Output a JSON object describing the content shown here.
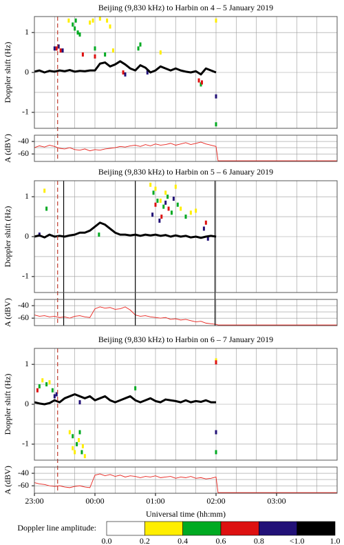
{
  "chart_data": [
    {
      "type": "doppler",
      "title": "Beijing (9,830 kHz) to Harbin on 4 – 5 January 2019",
      "ylabel": "Doppler shift (Hz)",
      "xlim": [
        0,
        300
      ],
      "xgrid": [
        20,
        40,
        60,
        80,
        100,
        120,
        140,
        160,
        180,
        200,
        220,
        240,
        260,
        280
      ],
      "ylim": [
        -1.4,
        1.4
      ],
      "yticks": [
        -1,
        0,
        1
      ],
      "ygrid": [
        -1,
        -0.5,
        0,
        0.5,
        1
      ],
      "markers": [
        {
          "x": 23,
          "style": "dashed",
          "color": "#c0392b"
        }
      ],
      "trace": {
        "color": "#000000",
        "x": [
          0,
          5,
          10,
          15,
          20,
          25,
          30,
          35,
          40,
          45,
          50,
          55,
          60,
          65,
          70,
          75,
          80,
          85,
          90,
          95,
          100,
          105,
          110,
          115,
          120,
          125,
          130,
          135,
          140,
          145,
          150,
          155,
          160,
          165,
          170,
          175,
          180
        ],
        "values": [
          0.02,
          0.05,
          0.0,
          0.04,
          0.02,
          0.05,
          0.03,
          0.06,
          0.02,
          0.04,
          0.03,
          0.05,
          0.05,
          0.22,
          0.25,
          0.15,
          0.2,
          0.28,
          0.2,
          0.1,
          0.05,
          0.18,
          0.12,
          0.0,
          0.05,
          0.15,
          0.1,
          0.05,
          0.1,
          0.05,
          0.02,
          0.0,
          0.03,
          -0.05,
          0.1,
          0.05,
          0.0
        ]
      },
      "dots": [
        {
          "color": "#00aa22",
          "x": [
            38,
            40,
            41,
            43,
            45,
            60,
            70,
            103,
            105,
            165,
            180
          ],
          "values": [
            1.2,
            1.1,
            1.3,
            1.0,
            0.95,
            0.6,
            0.45,
            0.6,
            0.7,
            -0.3,
            -1.3
          ]
        },
        {
          "color": "#ffee00",
          "x": [
            34,
            55,
            58,
            65,
            72,
            75,
            78,
            125,
            180
          ],
          "values": [
            1.3,
            1.25,
            1.3,
            1.35,
            1.3,
            1.15,
            0.55,
            0.5,
            1.3
          ]
        },
        {
          "color": "#dd1111",
          "x": [
            22,
            26,
            48,
            60,
            88,
            163,
            166
          ],
          "values": [
            0.6,
            0.55,
            0.45,
            0.4,
            0.0,
            -0.2,
            -0.25
          ]
        },
        {
          "color": "#221177",
          "x": [
            20,
            24,
            28,
            90,
            112,
            180
          ],
          "values": [
            0.6,
            0.65,
            0.55,
            -0.05,
            0.0,
            -0.6
          ]
        }
      ],
      "amplitude": {
        "ylabel": "A (dBV)",
        "ylim": [
          -72,
          -30
        ],
        "yticks": [
          -40,
          -60
        ],
        "ygrid": [
          -40,
          -50,
          -60
        ],
        "color": "#e8201a",
        "x": [
          0,
          5,
          10,
          15,
          20,
          25,
          30,
          35,
          40,
          45,
          50,
          55,
          60,
          65,
          70,
          75,
          80,
          85,
          90,
          95,
          100,
          105,
          110,
          115,
          120,
          125,
          130,
          135,
          140,
          145,
          150,
          155,
          160,
          165,
          170,
          175,
          180,
          182,
          300
        ],
        "values": [
          -50,
          -47,
          -49,
          -46,
          -48,
          -51,
          -52,
          -50,
          -53,
          -54,
          -52,
          -55,
          -53,
          -54,
          -52,
          -51,
          -50,
          -48,
          -49,
          -47,
          -46,
          -48,
          -45,
          -47,
          -44,
          -46,
          -45,
          -43,
          -46,
          -44,
          -42,
          -45,
          -43,
          -41,
          -44,
          -46,
          -48,
          -71,
          -71
        ]
      }
    },
    {
      "type": "doppler",
      "title": "Beijing (9,830 kHz) to Harbin on 5 – 6 January 2019",
      "ylabel": "Doppler shift (Hz)",
      "xlim": [
        0,
        300
      ],
      "xgrid": [
        20,
        40,
        60,
        80,
        100,
        120,
        140,
        160,
        180,
        200,
        220,
        240,
        260,
        280
      ],
      "ylim": [
        -1.4,
        1.4
      ],
      "yticks": [
        -1,
        0,
        1
      ],
      "ygrid": [
        -1,
        -0.5,
        0,
        0.5,
        1
      ],
      "markers": [
        {
          "x": 23,
          "style": "dashed",
          "color": "#c0392b"
        },
        {
          "x": 29,
          "style": "solid",
          "color": "#000000"
        },
        {
          "x": 100,
          "style": "solid",
          "color": "#000000"
        },
        {
          "x": 179,
          "style": "solid",
          "color": "#000000"
        }
      ],
      "trace": {
        "color": "#000000",
        "x": [
          0,
          5,
          10,
          15,
          20,
          25,
          30,
          35,
          40,
          45,
          50,
          55,
          60,
          65,
          70,
          75,
          80,
          85,
          90,
          95,
          100,
          105,
          110,
          115,
          120,
          125,
          130,
          135,
          140,
          145,
          150,
          155,
          160,
          165,
          170,
          175,
          180
        ],
        "values": [
          0.0,
          0.03,
          -0.02,
          0.05,
          0.0,
          0.02,
          0.0,
          0.03,
          0.05,
          0.1,
          0.1,
          0.15,
          0.25,
          0.35,
          0.3,
          0.2,
          0.1,
          0.05,
          0.05,
          0.03,
          0.05,
          0.02,
          0.05,
          0.03,
          0.05,
          0.02,
          0.04,
          0.0,
          0.03,
          0.0,
          0.02,
          -0.02,
          0.0,
          -0.03,
          0.0,
          0.02,
          0.0
        ]
      },
      "dots": [
        {
          "color": "#00aa22",
          "x": [
            118,
            122,
            128,
            132,
            136,
            142,
            150,
            12,
            64
          ],
          "values": [
            1.1,
            0.9,
            0.75,
            1.0,
            0.6,
            0.8,
            0.5,
            0.7,
            0.05
          ]
        },
        {
          "color": "#ffee00",
          "x": [
            115,
            120,
            125,
            130,
            140,
            145,
            155,
            160,
            10
          ],
          "values": [
            1.3,
            1.2,
            0.9,
            1.1,
            1.25,
            0.7,
            0.6,
            0.65,
            1.15
          ]
        },
        {
          "color": "#dd1111",
          "x": [
            120,
            126,
            133,
            170
          ],
          "values": [
            0.8,
            0.5,
            0.7,
            0.35
          ]
        },
        {
          "color": "#221177",
          "x": [
            117,
            124,
            130,
            138,
            168,
            5,
            172
          ],
          "values": [
            0.55,
            0.4,
            0.85,
            0.95,
            0.2,
            0.05,
            -0.05
          ]
        }
      ],
      "amplitude": {
        "ylabel": "A (dBV)",
        "ylim": [
          -72,
          -30
        ],
        "yticks": [
          -40,
          -60
        ],
        "ygrid": [
          -40,
          -50,
          -60
        ],
        "color": "#e8201a",
        "x": [
          0,
          5,
          10,
          15,
          20,
          25,
          30,
          35,
          40,
          45,
          50,
          55,
          60,
          65,
          70,
          75,
          80,
          85,
          90,
          95,
          100,
          105,
          110,
          115,
          120,
          125,
          130,
          135,
          140,
          145,
          150,
          155,
          160,
          165,
          170,
          175,
          180,
          182,
          300
        ],
        "values": [
          -55,
          -57,
          -56,
          -58,
          -57,
          -59,
          -58,
          -60,
          -57,
          -56,
          -58,
          -59,
          -45,
          -42,
          -44,
          -43,
          -46,
          -45,
          -42,
          -47,
          -55,
          -57,
          -56,
          -58,
          -59,
          -60,
          -59,
          -62,
          -61,
          -63,
          -62,
          -64,
          -66,
          -65,
          -68,
          -69,
          -70,
          -71,
          -71
        ]
      }
    },
    {
      "type": "doppler",
      "title": "Beijing (9,830 kHz) to Harbin on 6 – 7 January 2019",
      "ylabel": "Doppler shift (Hz)",
      "xlabel": "Universal time (hh:mm)",
      "xlim": [
        0,
        300
      ],
      "xgrid": [
        20,
        40,
        60,
        80,
        100,
        120,
        140,
        160,
        180,
        200,
        220,
        240,
        260,
        280
      ],
      "xticks": [
        {
          "value": 0,
          "label": "23:00"
        },
        {
          "value": 60,
          "label": "00:00"
        },
        {
          "value": 120,
          "label": "01:00"
        },
        {
          "value": 180,
          "label": "02:00"
        },
        {
          "value": 240,
          "label": "03:00"
        }
      ],
      "ylim": [
        -1.4,
        1.4
      ],
      "yticks": [
        -1,
        0,
        1
      ],
      "ygrid": [
        -1,
        -0.5,
        0,
        0.5,
        1
      ],
      "markers": [
        {
          "x": 23,
          "style": "dashed",
          "color": "#c0392b"
        }
      ],
      "trace": {
        "color": "#000000",
        "x": [
          0,
          5,
          10,
          15,
          20,
          25,
          30,
          35,
          40,
          45,
          50,
          55,
          60,
          65,
          70,
          75,
          80,
          85,
          90,
          95,
          100,
          105,
          110,
          115,
          120,
          125,
          130,
          135,
          140,
          145,
          150,
          155,
          160,
          165,
          170,
          175,
          180
        ],
        "values": [
          0.05,
          0.02,
          0.0,
          0.03,
          0.1,
          0.05,
          0.15,
          0.2,
          0.25,
          0.2,
          0.15,
          0.2,
          0.1,
          0.15,
          0.2,
          0.1,
          0.05,
          0.1,
          0.15,
          0.2,
          0.1,
          0.05,
          0.1,
          0.15,
          0.08,
          0.05,
          0.12,
          0.1,
          0.08,
          0.05,
          0.1,
          0.05,
          0.08,
          0.06,
          0.1,
          0.05,
          0.05
        ]
      },
      "dots": [
        {
          "color": "#00aa22",
          "x": [
            5,
            12,
            18,
            38,
            42,
            45,
            47,
            100,
            180
          ],
          "values": [
            0.45,
            0.5,
            0.35,
            -0.8,
            -1.0,
            -0.7,
            -1.2,
            0.4,
            -1.2
          ]
        },
        {
          "color": "#ffee00",
          "x": [
            8,
            15,
            35,
            38,
            40,
            44,
            48,
            50,
            180
          ],
          "values": [
            0.6,
            0.55,
            -0.7,
            -1.1,
            -1.2,
            -0.9,
            -1.05,
            -1.3,
            1.1
          ]
        },
        {
          "color": "#dd1111",
          "x": [
            3,
            180
          ],
          "values": [
            0.35,
            1.05
          ]
        },
        {
          "color": "#221177",
          "x": [
            20,
            22,
            45,
            180
          ],
          "values": [
            0.2,
            0.25,
            0.05,
            -0.7
          ]
        }
      ],
      "amplitude": {
        "ylabel": "A (dBV)",
        "ylim": [
          -72,
          -30
        ],
        "yticks": [
          -40,
          -60
        ],
        "ygrid": [
          -40,
          -50,
          -60
        ],
        "color": "#e8201a",
        "x": [
          0,
          5,
          10,
          15,
          20,
          25,
          30,
          35,
          40,
          45,
          50,
          55,
          60,
          65,
          70,
          75,
          80,
          85,
          90,
          95,
          100,
          105,
          110,
          115,
          120,
          125,
          130,
          135,
          140,
          145,
          150,
          155,
          160,
          165,
          170,
          175,
          180,
          182,
          300
        ],
        "values": [
          -55,
          -57,
          -58,
          -60,
          -61,
          -60,
          -62,
          -63,
          -61,
          -60,
          -62,
          -63,
          -43,
          -41,
          -44,
          -42,
          -45,
          -43,
          -46,
          -44,
          -45,
          -47,
          -45,
          -46,
          -44,
          -47,
          -46,
          -45,
          -48,
          -46,
          -47,
          -45,
          -48,
          -47,
          -49,
          -48,
          -46,
          -71,
          -71
        ]
      }
    }
  ],
  "colorbar": {
    "label": "Doppler line amplitude:",
    "colors": [
      "#ffffff",
      "#ffee00",
      "#00aa22",
      "#dd1111",
      "#221177",
      "#000000"
    ],
    "labels": [
      "0.0",
      "0.2",
      "0.4",
      "0.6",
      "0.8",
      "<1.0",
      "1.0"
    ]
  }
}
